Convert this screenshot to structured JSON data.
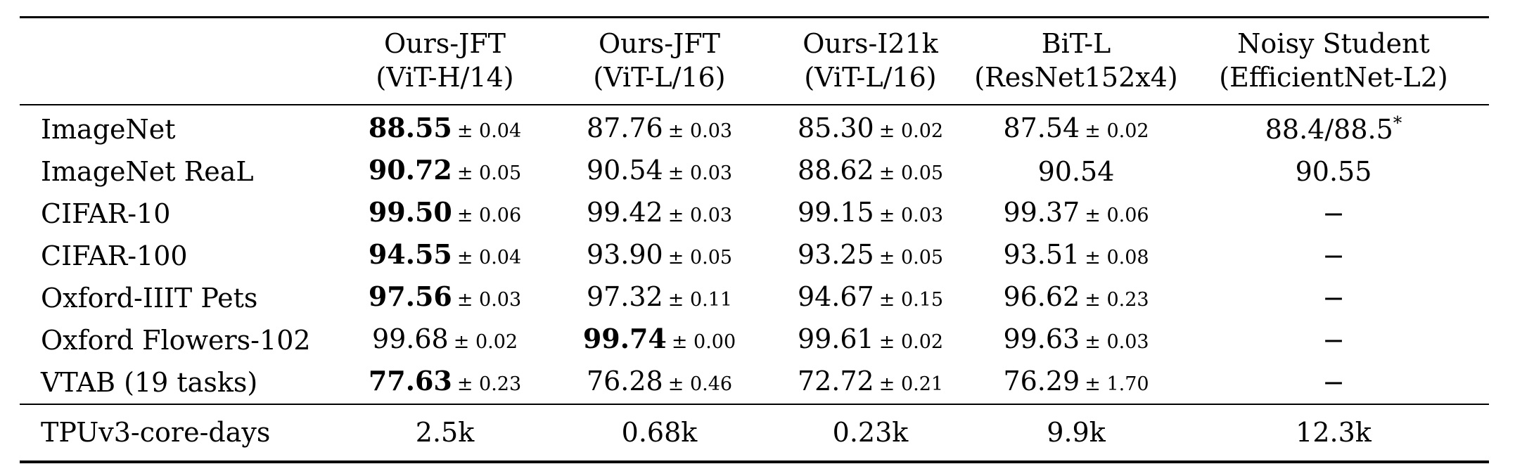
{
  "table": {
    "header": [
      {
        "line1": "Ours-JFT",
        "line2": "(ViT-H/14)"
      },
      {
        "line1": "Ours-JFT",
        "line2": "(ViT-L/16)"
      },
      {
        "line1": "Ours-I21k",
        "line2": "(ViT-L/16)"
      },
      {
        "line1": "BiT-L",
        "line2": "(ResNet152x4)"
      },
      {
        "line1": "Noisy Student",
        "line2": "(EfficientNet-L2)"
      }
    ],
    "rows": [
      {
        "label": "ImageNet",
        "cells": [
          {
            "value": "88.55",
            "pm": "± 0.04",
            "bold": true
          },
          {
            "value": "87.76",
            "pm": "± 0.03",
            "bold": false
          },
          {
            "value": "85.30",
            "pm": "± 0.02",
            "bold": false
          },
          {
            "value": "87.54",
            "pm": "± 0.02",
            "bold": false
          },
          {
            "value": "88.4/88.5",
            "sup": "*",
            "bold": false
          }
        ]
      },
      {
        "label": "ImageNet ReaL",
        "cells": [
          {
            "value": "90.72",
            "pm": "± 0.05",
            "bold": true
          },
          {
            "value": "90.54",
            "pm": "± 0.03",
            "bold": false
          },
          {
            "value": "88.62",
            "pm": "± 0.05",
            "bold": false
          },
          {
            "value": "90.54",
            "bold": false
          },
          {
            "value": "90.55",
            "bold": false
          }
        ]
      },
      {
        "label": "CIFAR-10",
        "cells": [
          {
            "value": "99.50",
            "pm": "± 0.06",
            "bold": true
          },
          {
            "value": "99.42",
            "pm": "± 0.03",
            "bold": false
          },
          {
            "value": "99.15",
            "pm": "± 0.03",
            "bold": false
          },
          {
            "value": "99.37",
            "pm": "± 0.06",
            "bold": false
          },
          {
            "value": "−",
            "bold": false
          }
        ]
      },
      {
        "label": "CIFAR-100",
        "cells": [
          {
            "value": "94.55",
            "pm": "± 0.04",
            "bold": true
          },
          {
            "value": "93.90",
            "pm": "± 0.05",
            "bold": false
          },
          {
            "value": "93.25",
            "pm": "± 0.05",
            "bold": false
          },
          {
            "value": "93.51",
            "pm": "± 0.08",
            "bold": false
          },
          {
            "value": "−",
            "bold": false
          }
        ]
      },
      {
        "label": "Oxford-IIIT Pets",
        "cells": [
          {
            "value": "97.56",
            "pm": "± 0.03",
            "bold": true
          },
          {
            "value": "97.32",
            "pm": "± 0.11",
            "bold": false
          },
          {
            "value": "94.67",
            "pm": "± 0.15",
            "bold": false
          },
          {
            "value": "96.62",
            "pm": "± 0.23",
            "bold": false
          },
          {
            "value": "−",
            "bold": false
          }
        ]
      },
      {
        "label": "Oxford Flowers-102",
        "cells": [
          {
            "value": "99.68",
            "pm": "± 0.02",
            "bold": false
          },
          {
            "value": "99.74",
            "pm": "± 0.00",
            "bold": true
          },
          {
            "value": "99.61",
            "pm": "± 0.02",
            "bold": false
          },
          {
            "value": "99.63",
            "pm": "± 0.03",
            "bold": false
          },
          {
            "value": "−",
            "bold": false
          }
        ]
      },
      {
        "label": "VTAB (19 tasks)",
        "cells": [
          {
            "value": "77.63",
            "pm": "± 0.23",
            "bold": true
          },
          {
            "value": "76.28",
            "pm": "± 0.46",
            "bold": false
          },
          {
            "value": "72.72",
            "pm": "± 0.21",
            "bold": false
          },
          {
            "value": "76.29",
            "pm": "± 1.70",
            "bold": false
          },
          {
            "value": "−",
            "bold": false
          }
        ]
      }
    ],
    "footer": {
      "label": "TPUv3-core-days",
      "cells": [
        "2.5k",
        "0.68k",
        "0.23k",
        "9.9k",
        "12.3k"
      ]
    }
  }
}
